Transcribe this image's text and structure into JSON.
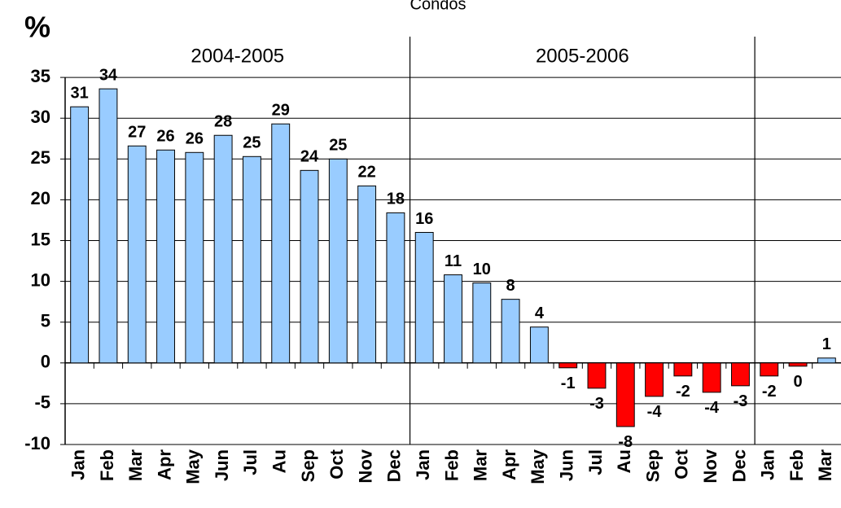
{
  "chart_data": {
    "type": "bar",
    "title": "Condos",
    "y_label": "%",
    "categories": [
      "Jan",
      "Feb",
      "Mar",
      "Apr",
      "May",
      "Jun",
      "Jul",
      "Au",
      "Sep",
      "Oct",
      "Nov",
      "Dec",
      "Jan",
      "Feb",
      "Mar",
      "Apr",
      "May",
      "Jun",
      "Jul",
      "Au",
      "Sep",
      "Oct",
      "Nov",
      "Dec",
      "Jan",
      "Feb",
      "Mar"
    ],
    "values": [
      31.4,
      33.6,
      26.6,
      26.1,
      25.8,
      27.9,
      25.3,
      29.3,
      23.6,
      25.0,
      21.7,
      18.4,
      16.0,
      10.8,
      9.8,
      7.8,
      4.4,
      -0.6,
      -3.1,
      -7.8,
      -4.1,
      -1.6,
      -3.6,
      -2.8,
      -1.6,
      -0.4,
      0.6
    ],
    "value_labels": [
      "31",
      "34",
      "27",
      "26",
      "26",
      "28",
      "25",
      "29",
      "24",
      "25",
      "22",
      "18",
      "16",
      "11",
      "10",
      "8",
      "4",
      "-1",
      "-3",
      "-8",
      "-4",
      "-2",
      "-4",
      "-3",
      "-2",
      "0",
      "1"
    ],
    "period_labels": [
      "2004-2005",
      "2005-2006"
    ],
    "color": "#99ccff",
    "negative_color": "#ff0000",
    "ylim": [
      -10,
      40
    ],
    "yticks": [
      -10,
      -5,
      0,
      5,
      10,
      15,
      20,
      25,
      30,
      35
    ],
    "grid": true
  }
}
